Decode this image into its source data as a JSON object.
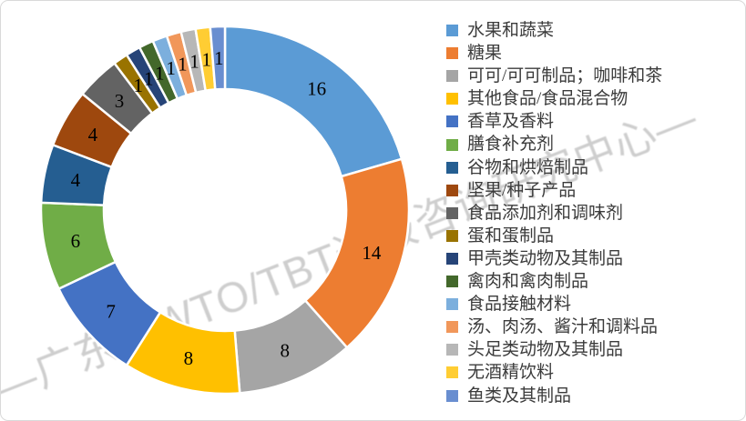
{
  "frame": {
    "background": "#ffffff",
    "border_color": "#d9d9d9"
  },
  "watermark": {
    "text": "—广东省WTO/TBT通报咨询研究中心—",
    "color": "#7d7d7d"
  },
  "chart_data": {
    "type": "pie",
    "subtype": "donut",
    "title": "",
    "legend_position": "right",
    "data_labels_shown": true,
    "start_angle_deg": 0,
    "direction": "clockwise",
    "hole_ratio": 0.66,
    "total": 78,
    "categories": [
      "水果和蔬菜",
      "糖果",
      "可可/可可制品；咖啡和茶",
      "其他食品/食品混合物",
      "香草及香料",
      "膳食补充剂",
      "谷物和烘焙制品",
      "坚果/种子产品",
      "食品添加剂和调味剂",
      "蛋和蛋制品",
      "甲壳类动物及其制品",
      "禽肉和禽肉制品",
      "食品接触材料",
      "汤、肉汤、酱汁和调料品",
      "头足类动物及其制品",
      "无酒精饮料",
      "鱼类及其制品"
    ],
    "values": [
      16,
      14,
      8,
      8,
      7,
      6,
      4,
      4,
      3,
      1,
      1,
      1,
      1,
      1,
      1,
      1,
      1
    ],
    "colors": [
      "#5B9BD5",
      "#ED7D31",
      "#A5A5A5",
      "#FFC000",
      "#4472C4",
      "#70AD47",
      "#255E91",
      "#9E480E",
      "#636363",
      "#997300",
      "#264478",
      "#43682B",
      "#7CAFDD",
      "#F1975A",
      "#B7B7B7",
      "#FFCD33",
      "#698ED0"
    ],
    "label_color": "#000000"
  }
}
